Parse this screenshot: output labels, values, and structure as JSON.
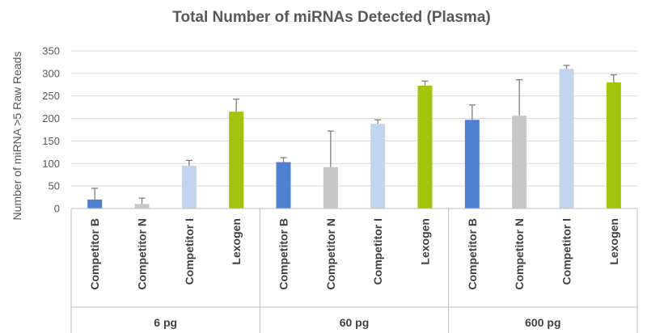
{
  "chart_data": {
    "type": "bar",
    "title": "Total Number of miRNAs Detected (Plasma)",
    "ylabel": "Number of miRNA >5 Raw Reads",
    "xlabel": "",
    "ylim": [
      0,
      350
    ],
    "yticks": [
      0,
      50,
      100,
      150,
      200,
      250,
      300,
      350
    ],
    "grid": true,
    "series_names": [
      "Competitor B",
      "Competitor N",
      "Competitor I",
      "Lexogen"
    ],
    "colors": {
      "Competitor B": "#4f81d2",
      "Competitor N": "#c8c8c8",
      "Competitor I": "#c3d4ee",
      "Lexogen": "#a2c40c"
    },
    "groups": [
      {
        "label": "6 pg",
        "bars": [
          {
            "name": "Competitor B",
            "value": 20,
            "error": 25
          },
          {
            "name": "Competitor N",
            "value": 10,
            "error": 13
          },
          {
            "name": "Competitor I",
            "value": 95,
            "error": 12
          },
          {
            "name": "Lexogen",
            "value": 215,
            "error": 28
          }
        ]
      },
      {
        "label": "60 pg",
        "bars": [
          {
            "name": "Competitor B",
            "value": 103,
            "error": 10
          },
          {
            "name": "Competitor N",
            "value": 92,
            "error": 80
          },
          {
            "name": "Competitor I",
            "value": 188,
            "error": 9
          },
          {
            "name": "Lexogen",
            "value": 273,
            "error": 10
          }
        ]
      },
      {
        "label": "600 pg",
        "bars": [
          {
            "name": "Competitor B",
            "value": 197,
            "error": 33
          },
          {
            "name": "Competitor N",
            "value": 206,
            "error": 80
          },
          {
            "name": "Competitor I",
            "value": 310,
            "error": 8
          },
          {
            "name": "Lexogen",
            "value": 280,
            "error": 17
          }
        ]
      }
    ]
  }
}
